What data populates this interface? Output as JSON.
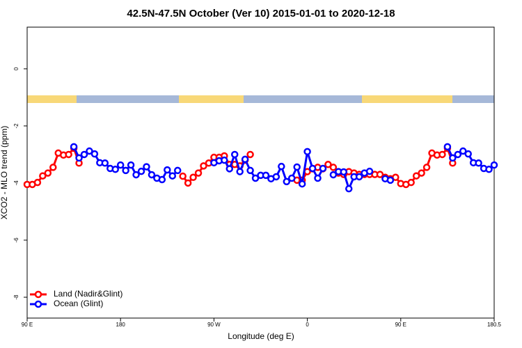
{
  "chart_data": {
    "type": "line",
    "title": "42.5N-47.5N October (Ver 10)   2015-01-01 to 2020-12-18",
    "x_label": "Longitude (deg E)",
    "y_label": "XCO2 - MLO trend (ppm)",
    "xlim": [
      90,
      540
    ],
    "ylim": [
      -8.73,
      1.46
    ],
    "xticks": [
      {
        "value": 90,
        "label": "90 E"
      },
      180,
      {
        "value": 270,
        "label": "90 W"
      },
      {
        "value": 360,
        "label": "0"
      },
      {
        "value": 450,
        "label": "90 E"
      },
      180.5
    ],
    "yticks": [
      0,
      -2,
      -4,
      -6,
      -8
    ],
    "legend": "bottom-left",
    "x": [
      90,
      95,
      100,
      105,
      110,
      115,
      120,
      125,
      130,
      135,
      140,
      145,
      150,
      155,
      160,
      165,
      170,
      175,
      180,
      185,
      190,
      195,
      200,
      205,
      210,
      215,
      220,
      225,
      230,
      235,
      240,
      245,
      250,
      255,
      260,
      265,
      270,
      275,
      280,
      285,
      290,
      295,
      300,
      305,
      310,
      315,
      320,
      325,
      330,
      335,
      340,
      345,
      350,
      355,
      360,
      365,
      370,
      375,
      380,
      385,
      390,
      395,
      400,
      405,
      410,
      415,
      420,
      425,
      430,
      435,
      440,
      445,
      450,
      455,
      460,
      465,
      470,
      475,
      480,
      485,
      490,
      495,
      500,
      505,
      510,
      515,
      520,
      525,
      530,
      535,
      540
    ],
    "series": [
      {
        "name": "Land (Nadir&Glint)",
        "color": "#ff0000",
        "values": [
          -4.05,
          -4.05,
          -3.98,
          -3.75,
          -3.65,
          -3.45,
          -2.95,
          -3.02,
          -3.0,
          -2.78,
          -3.3,
          null,
          null,
          null,
          null,
          null,
          null,
          null,
          null,
          null,
          null,
          null,
          null,
          null,
          null,
          null,
          null,
          null,
          null,
          null,
          -3.76,
          -4.0,
          -3.8,
          -3.65,
          -3.4,
          -3.3,
          -3.1,
          -3.1,
          -3.05,
          -3.35,
          -3.35,
          -3.4,
          -3.2,
          -3.0,
          null,
          null,
          null,
          null,
          null,
          null,
          null,
          null,
          -3.9,
          -3.9,
          -3.6,
          -3.5,
          -3.45,
          -3.5,
          -3.35,
          -3.45,
          -3.65,
          -3.7,
          -3.6,
          -3.65,
          -3.7,
          -3.7,
          -3.7,
          -3.7,
          -3.7,
          -3.8,
          -3.85,
          -3.8,
          -4.02,
          -4.05,
          -3.98,
          -3.75,
          -3.65,
          -3.45,
          -2.95,
          -3.02,
          -3.0,
          -2.78,
          -3.3,
          null,
          null,
          null,
          null,
          null,
          null,
          null,
          null
        ]
      },
      {
        "name": "Ocean (Glint)",
        "color": "#0000ff",
        "values": [
          null,
          null,
          null,
          null,
          null,
          null,
          null,
          null,
          null,
          -2.73,
          -3.12,
          -3.0,
          -2.88,
          -2.98,
          -3.29,
          -3.3,
          -3.49,
          -3.52,
          -3.37,
          -3.56,
          -3.37,
          -3.71,
          -3.59,
          -3.43,
          -3.71,
          -3.83,
          -3.88,
          -3.54,
          -3.75,
          -3.56,
          null,
          null,
          null,
          null,
          null,
          null,
          -3.29,
          -3.22,
          -3.2,
          -3.5,
          -3.0,
          -3.6,
          -3.17,
          -3.56,
          -3.83,
          -3.73,
          -3.73,
          -3.85,
          -3.78,
          -3.42,
          -3.95,
          -3.83,
          -3.44,
          -4.03,
          -2.9,
          -3.49,
          -3.83,
          -3.49,
          null,
          -3.71,
          -3.6,
          -3.61,
          -4.2,
          -3.78,
          -3.78,
          -3.65,
          -3.59,
          null,
          null,
          -3.85,
          -3.9,
          null,
          null,
          null,
          null,
          null,
          null,
          null,
          null,
          null,
          null,
          -2.73,
          -3.12,
          -3.0,
          -2.88,
          -2.98,
          -3.29,
          -3.3,
          -3.49,
          -3.52,
          -3.37
        ]
      }
    ]
  }
}
